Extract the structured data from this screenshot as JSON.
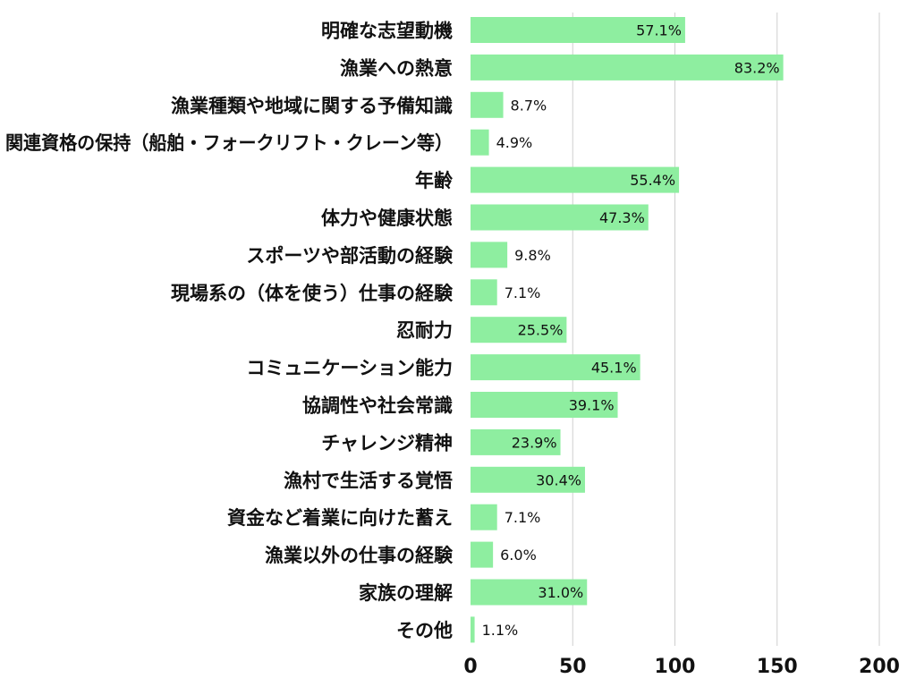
{
  "chart_data": {
    "type": "bar",
    "orientation": "horizontal",
    "categories": [
      "明確な志望動機",
      "漁業への熱意",
      "漁業種類や地域に関する予備知識",
      "関連資格の保持（船舶・フォークリフト・クレーン等）",
      "年齢",
      "体力や健康状態",
      "スポーツや部活動の経験",
      "現場系の（体を使う）仕事の経験",
      "忍耐力",
      "コミュニケーション能力",
      "協調性や社会常識",
      "チャレンジ精神",
      "漁村で生活する覚悟",
      "資金など着業に向けた蓄え",
      "漁業以外の仕事の経験",
      "家族の理解",
      "その他"
    ],
    "values": [
      105,
      153,
      16,
      9,
      102,
      87,
      18,
      13,
      47,
      83,
      72,
      44,
      56,
      13,
      11,
      57,
      2
    ],
    "data_labels": [
      "57.1%",
      "83.2%",
      "8.7%",
      "4.9%",
      "55.4%",
      "47.3%",
      "9.8%",
      "7.1%",
      "25.5%",
      "45.1%",
      "39.1%",
      "23.9%",
      "30.4%",
      "7.1%",
      "6.0%",
      "31.0%",
      "1.1%"
    ],
    "xlim": [
      0,
      200
    ],
    "x_ticks": [
      "0",
      "50",
      "100",
      "150",
      "200"
    ],
    "grid": true,
    "bar_color": "#8eeea0",
    "title": "",
    "xlabel": "",
    "ylabel": ""
  }
}
